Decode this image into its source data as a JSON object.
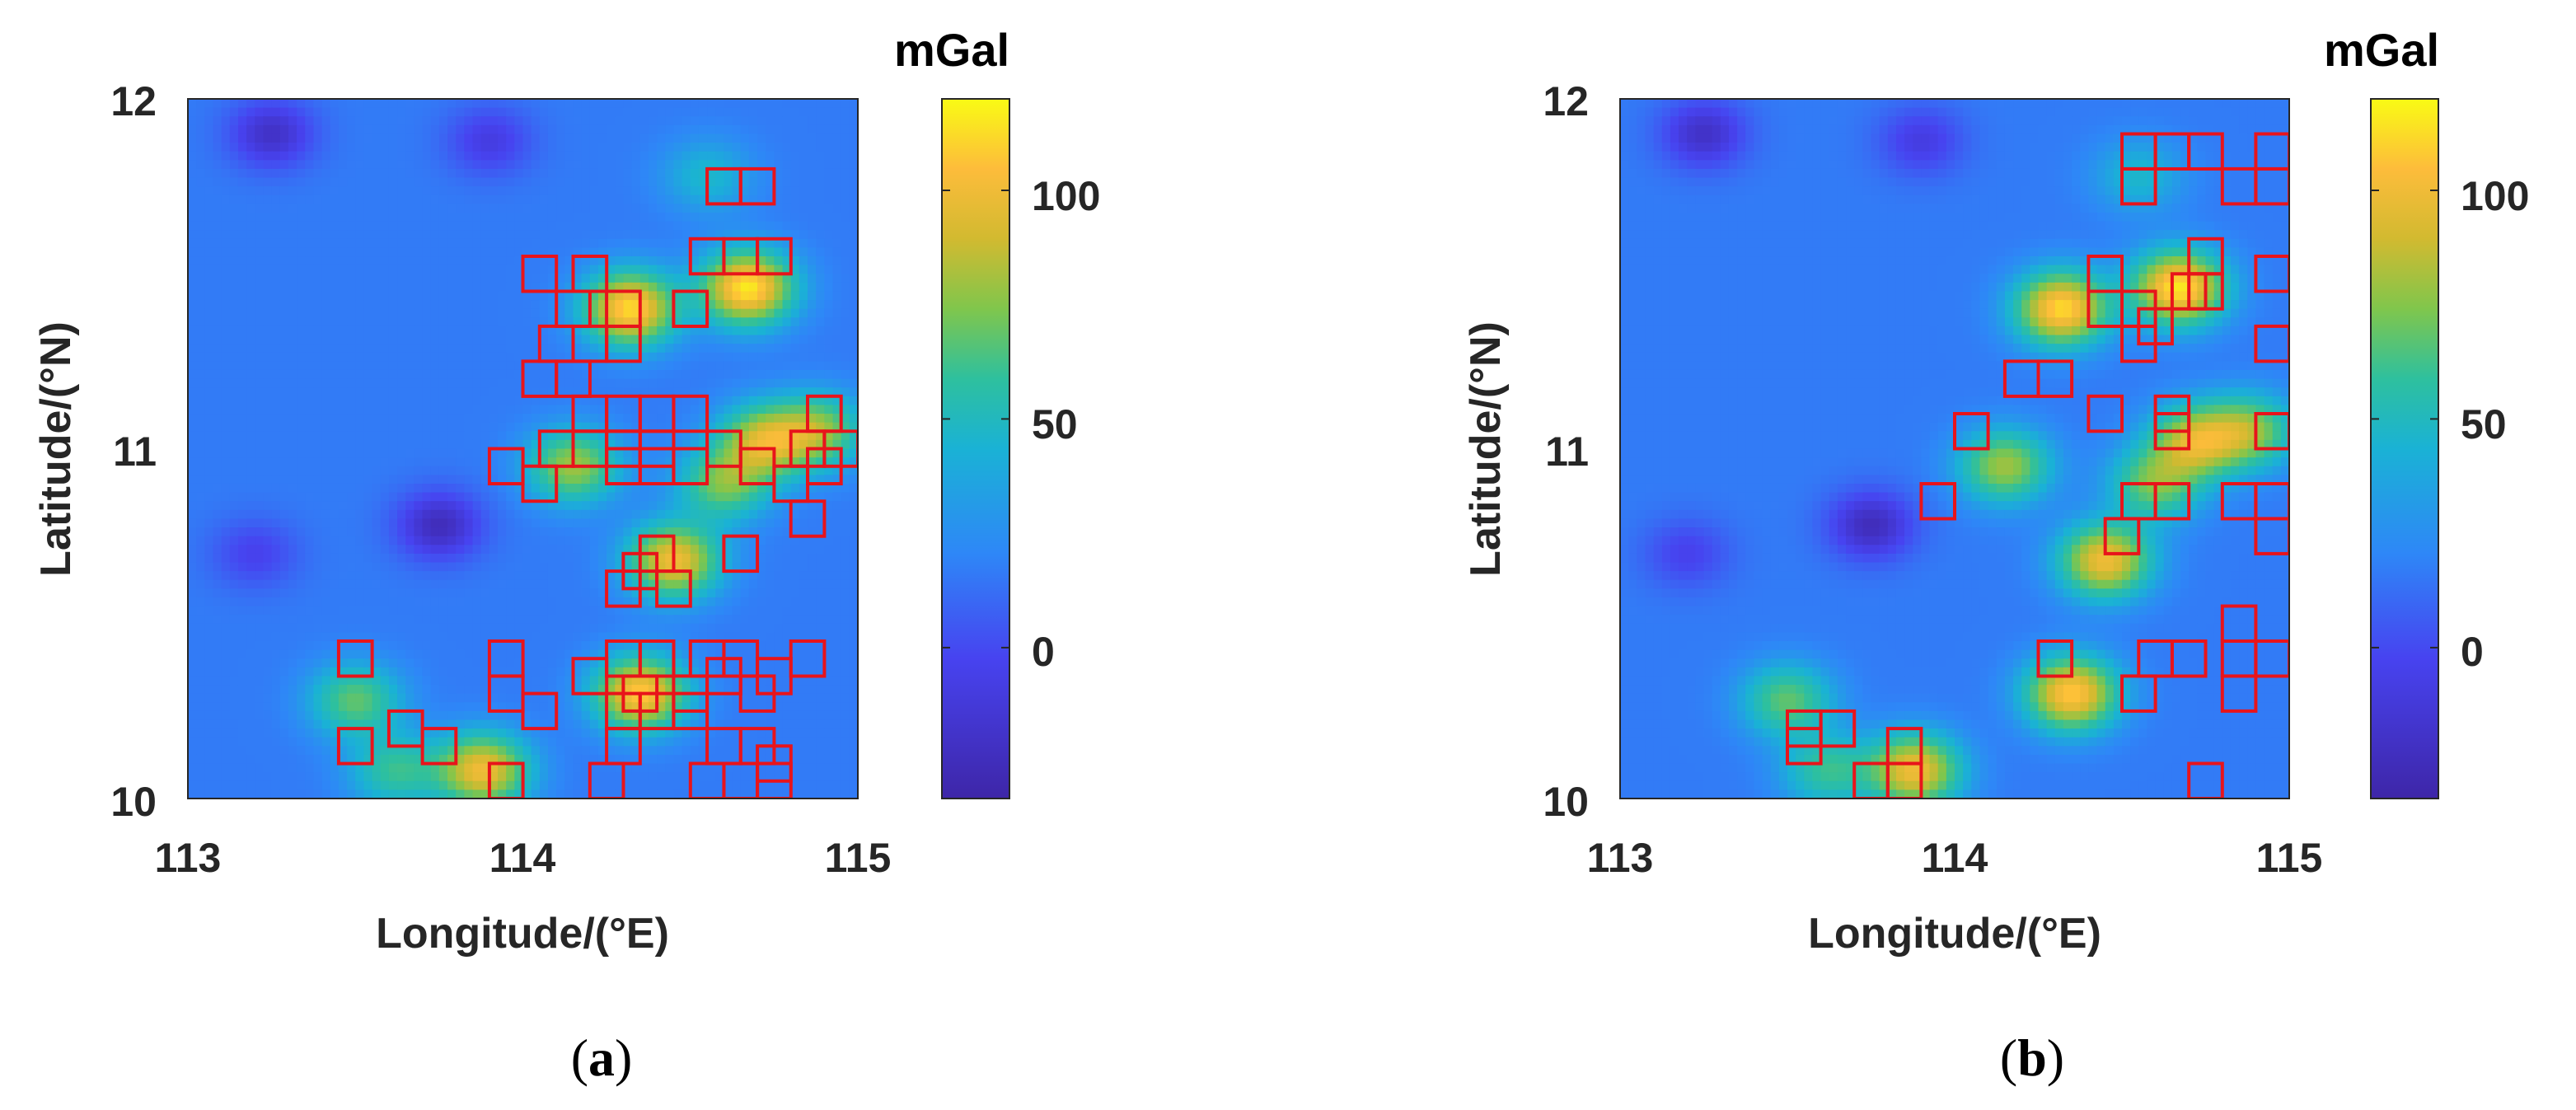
{
  "colorbar_unit": "mGal",
  "colorbar_ticks": [
    0,
    50,
    100
  ],
  "colorbar_range": [
    -33,
    120
  ],
  "colormap": "parula",
  "colormap_stops": [
    "#3e26a8",
    "#4743f0",
    "#2e87f7",
    "#1ab2d5",
    "#2ec09e",
    "#80c64c",
    "#d2ba30",
    "#fdbc3b",
    "#f9fb14"
  ],
  "box_color": "#e8141b",
  "panels": [
    {
      "open_paren": "(",
      "letter": "a",
      "close_paren": ")",
      "unit": "mGal",
      "xlabel": "Longitude/(°E)",
      "ylabel": "Latitude/(°N)",
      "x_ticks": [
        "113",
        "114",
        "115"
      ],
      "y_ticks": [
        "10",
        "11",
        "12"
      ],
      "colorbar_tick_labels": [
        "0",
        "50",
        "100"
      ]
    },
    {
      "open_paren": "(",
      "letter": "b",
      "close_paren": ")",
      "unit": "mGal",
      "xlabel": "Longitude/(°E)",
      "ylabel": "Latitude/(°N)",
      "x_ticks": [
        "113",
        "114",
        "115"
      ],
      "y_ticks": [
        "10",
        "11",
        "12"
      ],
      "colorbar_tick_labels": [
        "0",
        "50",
        "100"
      ]
    }
  ],
  "chart_data": [
    {
      "type": "heatmap",
      "title": "",
      "xlabel": "Longitude/(°E)",
      "ylabel": "Latitude/(°N)",
      "xlim": [
        113,
        115
      ],
      "ylim": [
        10,
        12
      ],
      "colorbar_label": "mGal",
      "colorbar_range": [
        -33,
        120
      ],
      "field_features": [
        {
          "lon": 114.35,
          "lat": 10.3,
          "value": 105
        },
        {
          "lon": 114.45,
          "lat": 10.68,
          "value": 95
        },
        {
          "lon": 114.72,
          "lat": 11.02,
          "value": 80
        },
        {
          "lon": 114.88,
          "lat": 11.05,
          "value": 65
        },
        {
          "lon": 114.32,
          "lat": 11.4,
          "value": 110
        },
        {
          "lon": 114.67,
          "lat": 11.46,
          "value": 115
        },
        {
          "lon": 114.15,
          "lat": 10.95,
          "value": 70
        },
        {
          "lon": 113.88,
          "lat": 10.08,
          "value": 95
        },
        {
          "lon": 113.5,
          "lat": 10.28,
          "value": 55
        },
        {
          "lon": 113.62,
          "lat": 10.08,
          "value": 45
        },
        {
          "lon": 114.6,
          "lat": 10.9,
          "value": 60
        },
        {
          "lon": 114.55,
          "lat": 11.78,
          "value": 28
        },
        {
          "lon": 113.75,
          "lat": 10.78,
          "value": -28
        },
        {
          "lon": 113.25,
          "lat": 11.9,
          "value": -25
        },
        {
          "lon": 113.2,
          "lat": 10.7,
          "value": -15
        },
        {
          "lon": 113.9,
          "lat": 11.88,
          "value": -18
        }
      ],
      "marked_cells": [
        [
          114.6,
          11.75
        ],
        [
          114.7,
          11.75
        ],
        [
          114.55,
          11.55
        ],
        [
          114.65,
          11.55
        ],
        [
          114.75,
          11.55
        ],
        [
          114.05,
          11.5
        ],
        [
          114.2,
          11.5
        ],
        [
          114.15,
          11.4
        ],
        [
          114.3,
          11.4
        ],
        [
          114.5,
          11.4
        ],
        [
          114.1,
          11.3
        ],
        [
          114.2,
          11.3
        ],
        [
          114.3,
          11.3
        ],
        [
          114.05,
          11.2
        ],
        [
          114.15,
          11.2
        ],
        [
          114.2,
          11.1
        ],
        [
          114.3,
          11.1
        ],
        [
          114.4,
          11.1
        ],
        [
          114.5,
          11.1
        ],
        [
          114.9,
          11.1
        ],
        [
          114.1,
          11.0
        ],
        [
          114.2,
          11.0
        ],
        [
          114.3,
          11.0
        ],
        [
          114.4,
          11.0
        ],
        [
          114.6,
          11.0
        ],
        [
          114.85,
          11.0
        ],
        [
          114.95,
          11.0
        ],
        [
          113.95,
          10.95
        ],
        [
          114.3,
          10.95
        ],
        [
          114.4,
          10.95
        ],
        [
          114.5,
          10.95
        ],
        [
          114.7,
          10.95
        ],
        [
          114.9,
          10.95
        ],
        [
          114.05,
          10.9
        ],
        [
          114.8,
          10.9
        ],
        [
          114.85,
          10.8
        ],
        [
          114.4,
          10.7
        ],
        [
          114.35,
          10.65
        ],
        [
          114.65,
          10.7
        ],
        [
          114.3,
          10.6
        ],
        [
          114.45,
          10.6
        ],
        [
          113.5,
          10.4
        ],
        [
          113.95,
          10.4
        ],
        [
          114.3,
          10.4
        ],
        [
          114.4,
          10.4
        ],
        [
          114.55,
          10.4
        ],
        [
          114.65,
          10.4
        ],
        [
          114.85,
          10.4
        ],
        [
          113.95,
          10.3
        ],
        [
          114.2,
          10.35
        ],
        [
          114.35,
          10.3
        ],
        [
          114.5,
          10.3
        ],
        [
          114.6,
          10.35
        ],
        [
          114.75,
          10.35
        ],
        [
          113.65,
          10.2
        ],
        [
          114.05,
          10.25
        ],
        [
          114.3,
          10.25
        ],
        [
          114.4,
          10.25
        ],
        [
          114.5,
          10.25
        ],
        [
          114.7,
          10.3
        ],
        [
          113.5,
          10.15
        ],
        [
          113.75,
          10.15
        ],
        [
          114.3,
          10.15
        ],
        [
          114.6,
          10.15
        ],
        [
          114.7,
          10.15
        ],
        [
          114.75,
          10.1
        ],
        [
          113.95,
          10.05
        ],
        [
          114.25,
          10.05
        ],
        [
          114.55,
          10.05
        ],
        [
          114.65,
          10.05
        ],
        [
          114.75,
          10.05
        ]
      ]
    },
    {
      "type": "heatmap",
      "title": "",
      "xlabel": "Longitude/(°E)",
      "ylabel": "Latitude/(°N)",
      "xlim": [
        113,
        115
      ],
      "ylim": [
        10,
        12
      ],
      "colorbar_label": "mGal",
      "colorbar_range": [
        -33,
        120
      ],
      "field_features": [
        {
          "lon": 114.35,
          "lat": 10.3,
          "value": 105
        },
        {
          "lon": 114.45,
          "lat": 10.68,
          "value": 95
        },
        {
          "lon": 114.72,
          "lat": 11.02,
          "value": 80
        },
        {
          "lon": 114.88,
          "lat": 11.05,
          "value": 65
        },
        {
          "lon": 114.32,
          "lat": 11.4,
          "value": 110
        },
        {
          "lon": 114.67,
          "lat": 11.46,
          "value": 115
        },
        {
          "lon": 114.15,
          "lat": 10.95,
          "value": 70
        },
        {
          "lon": 113.88,
          "lat": 10.08,
          "value": 95
        },
        {
          "lon": 113.5,
          "lat": 10.28,
          "value": 55
        },
        {
          "lon": 113.62,
          "lat": 10.08,
          "value": 45
        },
        {
          "lon": 114.6,
          "lat": 10.9,
          "value": 60
        },
        {
          "lon": 114.55,
          "lat": 11.78,
          "value": 28
        },
        {
          "lon": 113.75,
          "lat": 10.78,
          "value": -28
        },
        {
          "lon": 113.25,
          "lat": 11.9,
          "value": -25
        },
        {
          "lon": 113.2,
          "lat": 10.7,
          "value": -15
        },
        {
          "lon": 113.9,
          "lat": 11.88,
          "value": -18
        }
      ],
      "marked_cells": [
        [
          114.55,
          11.85
        ],
        [
          114.65,
          11.85
        ],
        [
          114.75,
          11.85
        ],
        [
          114.55,
          11.75
        ],
        [
          114.85,
          11.75
        ],
        [
          114.95,
          11.85
        ],
        [
          114.95,
          11.75
        ],
        [
          114.75,
          11.55
        ],
        [
          114.7,
          11.45
        ],
        [
          114.75,
          11.45
        ],
        [
          114.45,
          11.5
        ],
        [
          114.45,
          11.4
        ],
        [
          114.55,
          11.4
        ],
        [
          114.55,
          11.3
        ],
        [
          114.6,
          11.35
        ],
        [
          114.95,
          11.5
        ],
        [
          114.95,
          11.3
        ],
        [
          114.2,
          11.2
        ],
        [
          114.3,
          11.2
        ],
        [
          114.45,
          11.1
        ],
        [
          114.65,
          11.1
        ],
        [
          114.65,
          11.05
        ],
        [
          114.95,
          11.05
        ],
        [
          114.05,
          11.05
        ],
        [
          113.95,
          10.85
        ],
        [
          114.55,
          10.85
        ],
        [
          114.65,
          10.85
        ],
        [
          114.85,
          10.85
        ],
        [
          114.95,
          10.85
        ],
        [
          114.5,
          10.75
        ],
        [
          114.95,
          10.75
        ],
        [
          114.3,
          10.4
        ],
        [
          114.6,
          10.4
        ],
        [
          114.7,
          10.4
        ],
        [
          114.85,
          10.4
        ],
        [
          114.95,
          10.4
        ],
        [
          114.85,
          10.5
        ],
        [
          114.55,
          10.3
        ],
        [
          114.85,
          10.3
        ],
        [
          113.55,
          10.2
        ],
        [
          113.65,
          10.2
        ],
        [
          113.55,
          10.15
        ],
        [
          113.85,
          10.15
        ],
        [
          113.75,
          10.05
        ],
        [
          113.85,
          10.05
        ],
        [
          114.75,
          10.05
        ]
      ]
    }
  ]
}
